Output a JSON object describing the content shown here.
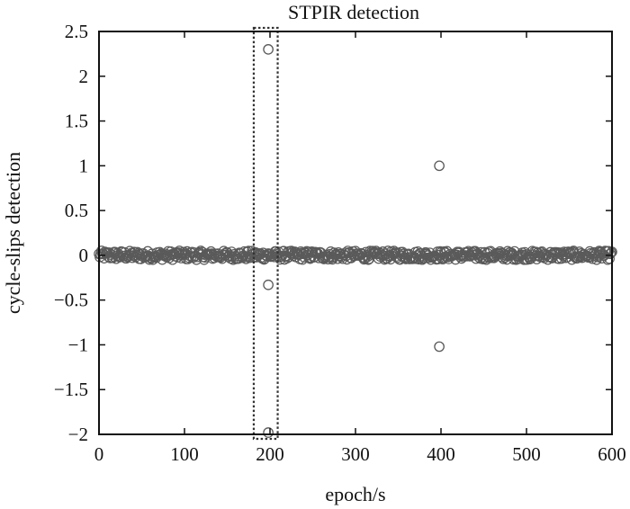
{
  "chart_data": {
    "type": "scatter",
    "title": "STPIR detection",
    "xlabel": "epoch/s",
    "ylabel": "cycle-slips detection",
    "xlim": [
      0,
      600
    ],
    "ylim": [
      -2,
      2.5
    ],
    "xticks": [
      "0",
      "100",
      "200",
      "300",
      "400",
      "500",
      "600"
    ],
    "yticks": [
      "2.5",
      "2",
      "1.5",
      "1",
      "0.5",
      "0",
      "−0.5",
      "−1",
      "−1.5",
      "−2"
    ],
    "grid": false,
    "legend": "none",
    "marker": "open-circle",
    "colors": {
      "marker": "#5a5a5a",
      "axes": "#111111",
      "highlight": "#333333"
    },
    "noise_band": {
      "x_range": [
        0,
        600
      ],
      "y_range": [
        -0.05,
        0.05
      ],
      "description_hidden": true
    },
    "outliers": [
      {
        "x": 198,
        "y": 2.3
      },
      {
        "x": 198,
        "y": -0.33
      },
      {
        "x": 198,
        "y": -1.98
      },
      {
        "x": 398,
        "y": 1.0
      },
      {
        "x": 398,
        "y": -1.02
      }
    ],
    "highlight_box": {
      "x_range": [
        181,
        209
      ],
      "y_range": [
        -2.05,
        2.5
      ],
      "style": "dotted"
    }
  }
}
